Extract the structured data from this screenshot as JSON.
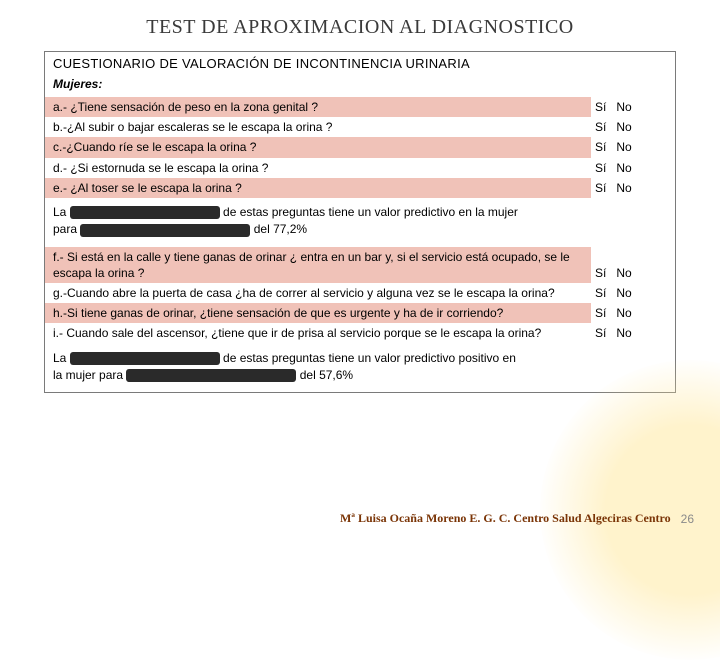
{
  "title": "TEST DE APROXIMACION AL DIAGNOSTICO",
  "panel": {
    "header": "CUESTIONARIO DE VALORACIÓN DE INCONTINENCIA URINARIA",
    "subheader": "Mujeres:",
    "yes": "Sí",
    "no": "No",
    "questions_a": [
      {
        "id": "a",
        "text": "a.- ¿Tiene sensación de peso en la zona genital ?",
        "hl": true
      },
      {
        "id": "b",
        "text": "b.-¿Al subir o bajar escaleras se le escapa la orina ?",
        "hl": false
      },
      {
        "id": "c",
        "text": "c.-¿Cuando ríe se le escapa la orina ?",
        "hl": true
      },
      {
        "id": "d",
        "text": "d.- ¿Si estornuda se le escapa la orina ?",
        "hl": false
      },
      {
        "id": "e",
        "text": "e.- ¿Al toser se le escapa la orina ?",
        "hl": true
      }
    ],
    "note1": {
      "pre": "La",
      "mid1": "de estas preguntas tiene un valor predictivo en la mujer",
      "line2_pre": "para",
      "line2_post": "del 77,2%"
    },
    "questions_b": [
      {
        "id": "f",
        "text": "f.- Si está en la calle y tiene ganas de orinar ¿ entra en un bar y, si el servicio está ocupado, se le escapa la orina ?",
        "hl": true
      },
      {
        "id": "g",
        "text": "g.-Cuando abre la puerta de casa ¿ha de correr al servicio y alguna vez se le escapa la orina?",
        "hl": false
      },
      {
        "id": "h",
        "text": "h.-Si tiene ganas de orinar, ¿tiene sensación de que es urgente y ha de ir corriendo?",
        "hl": true
      },
      {
        "id": "i",
        "text": "i.- Cuando sale del ascensor, ¿tiene que ir de prisa al servicio porque se le escapa la orina?",
        "hl": false
      }
    ],
    "note2": {
      "pre": "La",
      "mid1": "de estas preguntas tiene un valor predictivo positivo en",
      "line2_pre": "la mujer para",
      "line2_post": "del 57,6%"
    }
  },
  "footer": {
    "author": "Mª Luisa Ocaña Moreno E. G. C. Centro Salud Algeciras Centro",
    "page": "26"
  },
  "style": {
    "redact_w_short": "120px",
    "redact_w_long": "170px"
  }
}
